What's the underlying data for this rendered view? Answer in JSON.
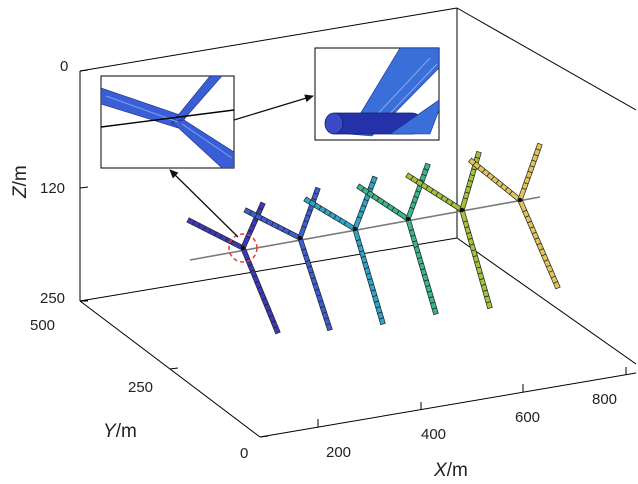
{
  "axes": {
    "x": {
      "label_var": "X",
      "label_unit": "/m",
      "ticks": [
        "200",
        "400",
        "600",
        "800"
      ]
    },
    "y": {
      "label_var": "Y",
      "label_unit": "/m",
      "ticks": [
        "0",
        "250",
        "500"
      ]
    },
    "z": {
      "label_var": "Z",
      "label_unit": "/m",
      "ticks": [
        "0",
        "120",
        "250"
      ]
    }
  },
  "turbine_count": 6,
  "blade_colors": [
    "#3a3ab8",
    "#3c5fd0",
    "#2fa4c8",
    "#3bb58a",
    "#a3c23a",
    "#e0c45a"
  ],
  "colors": {
    "box_line": "#000000",
    "axis_line": "#7a7a7a",
    "highlight_circle": "#e23a3a",
    "arrow": "#111111",
    "inset_blade": "#3a5ed6",
    "inset_nacelle": "#2431a8"
  },
  "insets": [
    {
      "name": "hub-closeup"
    },
    {
      "name": "nacelle-closeup"
    }
  ]
}
